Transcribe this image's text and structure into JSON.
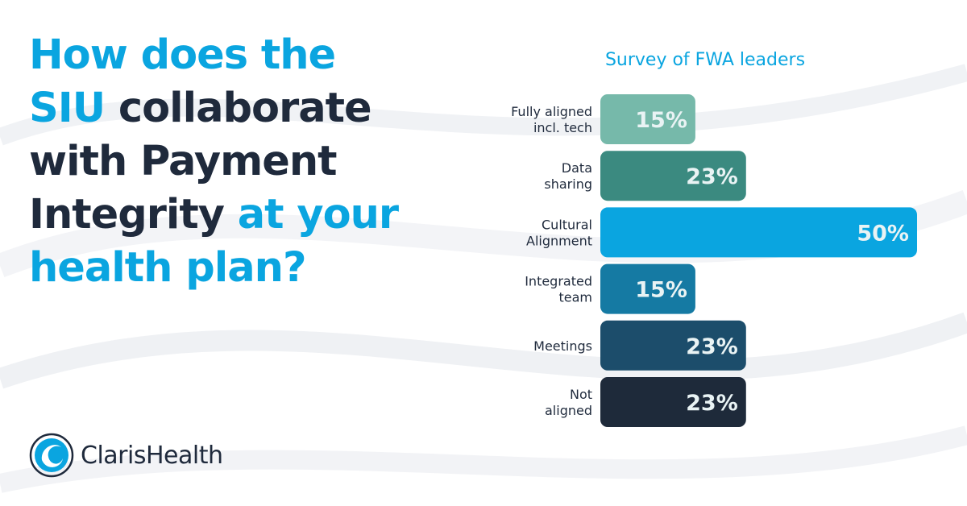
{
  "headline": {
    "line1": [
      {
        "text": "How does the",
        "highlight": true
      }
    ],
    "line2": [
      {
        "text": "SIU",
        "highlight": true
      },
      {
        "text": " collaborate",
        "highlight": false
      }
    ],
    "line3": [
      {
        "text": "with Payment",
        "highlight": false
      }
    ],
    "line4": [
      {
        "text": "Integrity",
        "highlight": false
      },
      {
        "text": " at your",
        "highlight": true
      }
    ],
    "line5": [
      {
        "text": "health plan?",
        "highlight": true
      }
    ]
  },
  "colors": {
    "highlight": "#0aa5e0",
    "dark": "#1f2a3c"
  },
  "logo": {
    "text": "ClarisHealth",
    "icon": "claris-swirl-icon"
  },
  "chart_data": {
    "type": "bar",
    "orientation": "horizontal",
    "title": "Survey of FWA leaders",
    "xlabel": "",
    "ylabel": "",
    "xlim": [
      0,
      50
    ],
    "grid": false,
    "legend": "none",
    "categories": [
      [
        "Fully aligned",
        "incl. tech"
      ],
      [
        "Data",
        "sharing"
      ],
      [
        "Cultural",
        "Alignment"
      ],
      [
        "Integrated",
        "team"
      ],
      [
        "Meetings"
      ],
      [
        "Not",
        "aligned"
      ]
    ],
    "values": [
      15,
      23,
      50,
      15,
      23,
      23
    ],
    "data_labels": [
      "15%",
      "23%",
      "50%",
      "15%",
      "23%",
      "23%"
    ],
    "bar_colors": [
      "#76b9aa",
      "#3b8a80",
      "#0aa5e0",
      "#157aa3",
      "#1c4d6b",
      "#1e2a3a"
    ]
  }
}
